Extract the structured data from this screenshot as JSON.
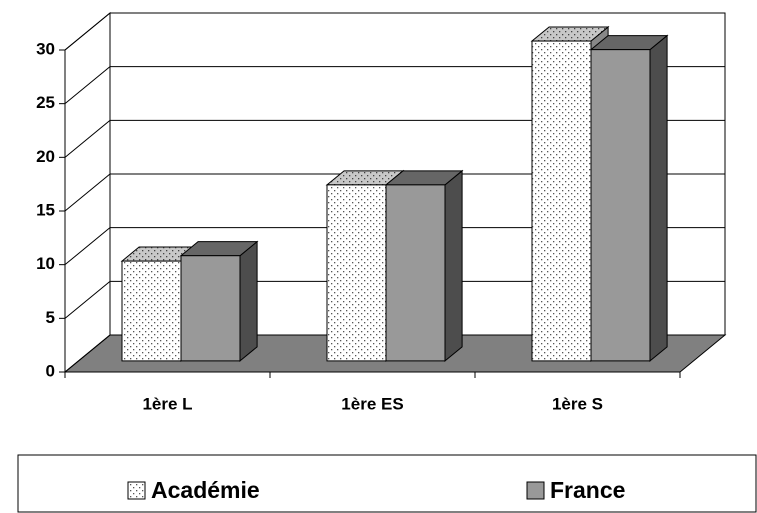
{
  "chart_data": {
    "type": "bar3d",
    "categories": [
      "1ère L",
      "1ère ES",
      "1ère S"
    ],
    "series": [
      {
        "name": "Académie",
        "color": "#ffffff",
        "values": [
          9.3,
          16.4,
          29.8
        ]
      },
      {
        "name": "France",
        "color": "#999999",
        "values": [
          9.8,
          16.4,
          29.0
        ]
      }
    ],
    "ylim": [
      0,
      30
    ],
    "yticks": [
      0,
      5,
      10,
      15,
      20,
      25,
      30
    ],
    "grid": true,
    "legend": "bottom"
  }
}
